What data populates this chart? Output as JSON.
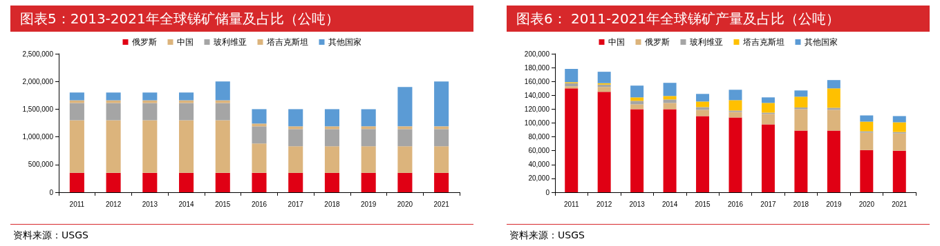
{
  "chart_data": [
    {
      "type": "bar",
      "title": "图表5：2013-2021年全球锑矿储量及占比（公吨）",
      "stacked": true,
      "legend": "top",
      "grid": false,
      "categories": [
        "2011",
        "2012",
        "2013",
        "2014",
        "2015",
        "2016",
        "2017",
        "2018",
        "2019",
        "2020",
        "2021"
      ],
      "ylim": [
        0,
        2500000
      ],
      "yticks": [
        {
          "value": 0,
          "label": "0"
        },
        {
          "value": 500000,
          "label": "500,000"
        },
        {
          "value": 1000000,
          "label": "1,000,000"
        },
        {
          "value": 1500000,
          "label": "1,500,000"
        },
        {
          "value": 2000000,
          "label": "2,000,000"
        },
        {
          "value": 2500000,
          "label": "2,500,000"
        }
      ],
      "series": [
        {
          "name": "俄罗斯",
          "color": "#e00014",
          "values": [
            350000,
            350000,
            350000,
            350000,
            350000,
            350000,
            350000,
            350000,
            350000,
            350000,
            350000
          ]
        },
        {
          "name": "中国",
          "color": "#dcb47c",
          "values": [
            950000,
            950000,
            950000,
            950000,
            950000,
            530000,
            480000,
            480000,
            480000,
            480000,
            480000
          ]
        },
        {
          "name": "玻利维亚",
          "color": "#a5a5a5",
          "values": [
            310000,
            310000,
            310000,
            310000,
            310000,
            310000,
            310000,
            310000,
            310000,
            310000,
            310000
          ]
        },
        {
          "name": "塔吉克斯坦",
          "color": "#dcb47c",
          "values": [
            50000,
            50000,
            50000,
            50000,
            50000,
            50000,
            50000,
            50000,
            50000,
            50000,
            50000
          ]
        },
        {
          "name": "其他国家",
          "color": "#5b9bd5",
          "values": [
            140000,
            140000,
            140000,
            140000,
            340000,
            260000,
            310000,
            310000,
            310000,
            710000,
            810000
          ]
        }
      ],
      "annotations": [
        "资料来源：USGS"
      ]
    },
    {
      "type": "bar",
      "title": "图表6： 2011-2021年全球锑矿产量及占比（公吨）",
      "stacked": true,
      "legend": "top",
      "grid": false,
      "categories": [
        "2011",
        "2012",
        "2013",
        "2014",
        "2015",
        "2016",
        "2017",
        "2018",
        "2019",
        "2020",
        "2021"
      ],
      "ylim": [
        0,
        200000
      ],
      "yticks": [
        {
          "value": 0,
          "label": "0"
        },
        {
          "value": 20000,
          "label": "20,000"
        },
        {
          "value": 40000,
          "label": "40,000"
        },
        {
          "value": 60000,
          "label": "60,000"
        },
        {
          "value": 80000,
          "label": "80,000"
        },
        {
          "value": 100000,
          "label": "100,000"
        },
        {
          "value": 120000,
          "label": "120,000"
        },
        {
          "value": 140000,
          "label": "140,000"
        },
        {
          "value": 160000,
          "label": "160,000"
        },
        {
          "value": 180000,
          "label": "180,000"
        },
        {
          "value": 200000,
          "label": "200,000"
        }
      ],
      "series": [
        {
          "name": "中国",
          "color": "#e00014",
          "values": [
            150000,
            145000,
            120000,
            120000,
            110000,
            108000,
            98000,
            89000,
            89000,
            61000,
            60000
          ]
        },
        {
          "name": "俄罗斯",
          "color": "#dcb47c",
          "values": [
            3000,
            7000,
            7000,
            9000,
            9000,
            8000,
            15000,
            31000,
            30000,
            25000,
            25000
          ]
        },
        {
          "name": "玻利维亚",
          "color": "#a5a5a5",
          "values": [
            4500,
            3500,
            5000,
            5000,
            4000,
            2000,
            2000,
            2500,
            3000,
            2000,
            2000
          ]
        },
        {
          "name": "塔吉克斯坦",
          "color": "#ffc000",
          "values": [
            1500,
            2000,
            5000,
            5000,
            8000,
            15000,
            14000,
            15500,
            28000,
            14000,
            14000
          ]
        },
        {
          "name": "其他国家",
          "color": "#5b9bd5",
          "values": [
            19000,
            16500,
            17000,
            19000,
            11000,
            15000,
            8000,
            9000,
            12000,
            9000,
            9000
          ]
        }
      ],
      "annotations": [
        "资料来源：USGS"
      ]
    }
  ]
}
